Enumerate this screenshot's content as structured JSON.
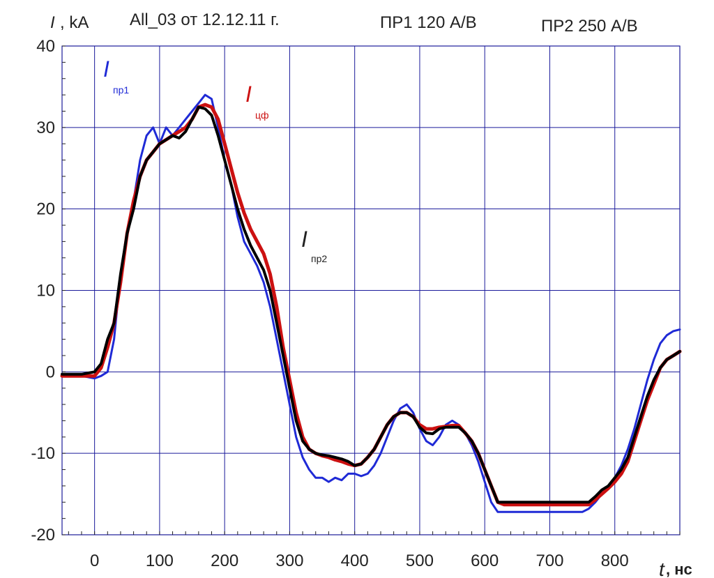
{
  "header": {
    "ylabel_symbol": "I",
    "ylabel_unit": ", kA",
    "title": "All_03 от 12.12.11 г.",
    "probe1": "ПР1 120 А/В",
    "probe2": "ПР2 250 А/В"
  },
  "colors": {
    "grid": "#1a1a9a",
    "series_pr1": "#1f2ad6",
    "series_cf": "#cc1111",
    "series_pr2": "#000000"
  },
  "chart_data": {
    "type": "line",
    "xlabel": "t",
    "xunit": ", нс",
    "ylabel": "I, kA",
    "xlim": [
      -50,
      900
    ],
    "ylim": [
      -20,
      40
    ],
    "xticks": [
      0,
      100,
      200,
      300,
      400,
      500,
      600,
      700,
      800
    ],
    "yticks": [
      -20,
      -10,
      0,
      10,
      20,
      30,
      40
    ],
    "grid": true,
    "series": [
      {
        "name": "I",
        "sub": "пр1",
        "color": "#1f2ad6",
        "x": [
          -50,
          -20,
          0,
          10,
          20,
          30,
          40,
          50,
          60,
          70,
          80,
          90,
          100,
          110,
          120,
          130,
          140,
          150,
          160,
          170,
          180,
          190,
          200,
          210,
          220,
          230,
          240,
          250,
          260,
          270,
          280,
          290,
          300,
          310,
          320,
          330,
          340,
          350,
          360,
          370,
          380,
          390,
          400,
          410,
          420,
          430,
          440,
          450,
          460,
          470,
          480,
          490,
          500,
          510,
          520,
          530,
          540,
          550,
          560,
          570,
          580,
          590,
          600,
          610,
          620,
          630,
          640,
          700,
          750,
          760,
          770,
          780,
          790,
          800,
          810,
          820,
          830,
          840,
          850,
          860,
          870,
          880,
          890,
          900
        ],
        "y": [
          -0.5,
          -0.5,
          -0.8,
          -0.5,
          0,
          4,
          12,
          17,
          21,
          26,
          29,
          30,
          28,
          30,
          29,
          30,
          31,
          32,
          33,
          34,
          33.5,
          30,
          26,
          23,
          19,
          16,
          14.5,
          13,
          11,
          8,
          4,
          0,
          -4,
          -8,
          -10.5,
          -12,
          -13,
          -13,
          -13.5,
          -13,
          -13.3,
          -12.5,
          -12.5,
          -12.8,
          -12.5,
          -11.5,
          -10,
          -8,
          -6,
          -4.5,
          -4,
          -5,
          -7,
          -8.5,
          -9,
          -8,
          -6.5,
          -6,
          -6.5,
          -7.5,
          -9,
          -11,
          -13.5,
          -16,
          -17.2,
          -17.2,
          -17.2,
          -17.2,
          -17.2,
          -16.8,
          -16,
          -15,
          -14,
          -13,
          -11.5,
          -9.5,
          -7,
          -4,
          -1,
          1.5,
          3.5,
          4.5,
          5,
          5.2
        ]
      },
      {
        "name": "I",
        "sub": "цф",
        "color": "#cc1111",
        "x": [
          -50,
          -20,
          0,
          10,
          20,
          30,
          40,
          50,
          60,
          70,
          80,
          90,
          100,
          110,
          120,
          130,
          140,
          150,
          160,
          170,
          180,
          190,
          200,
          210,
          220,
          230,
          240,
          250,
          260,
          270,
          280,
          290,
          300,
          310,
          320,
          330,
          340,
          350,
          360,
          370,
          380,
          390,
          400,
          410,
          420,
          430,
          440,
          450,
          460,
          470,
          480,
          490,
          500,
          510,
          520,
          530,
          540,
          550,
          560,
          570,
          580,
          590,
          600,
          610,
          620,
          630,
          640,
          700,
          750,
          760,
          770,
          780,
          790,
          800,
          810,
          820,
          830,
          840,
          850,
          860,
          870,
          880,
          890,
          900
        ],
        "y": [
          -0.5,
          -0.5,
          -0.5,
          0.5,
          3,
          6,
          11,
          17,
          21,
          24,
          26,
          27,
          28,
          28.5,
          29,
          29.5,
          30,
          31,
          32.5,
          32.8,
          32.5,
          31,
          28,
          25,
          22,
          19.5,
          17.5,
          16,
          14.5,
          12,
          8,
          3,
          -1,
          -5,
          -8,
          -9.5,
          -10,
          -10.3,
          -10.5,
          -10.8,
          -11,
          -11.3,
          -11.5,
          -11.3,
          -10.5,
          -9.5,
          -8,
          -6.5,
          -5.5,
          -5,
          -5,
          -5.5,
          -6.5,
          -7,
          -7,
          -6.8,
          -6.7,
          -6.6,
          -6.6,
          -7.5,
          -8.5,
          -10,
          -12,
          -14,
          -16,
          -16.3,
          -16.3,
          -16.3,
          -16.3,
          -16.3,
          -15.7,
          -15,
          -14.3,
          -13.5,
          -12.5,
          -11,
          -8.5,
          -6,
          -3.5,
          -1.5,
          0.5,
          1.5,
          2,
          2.5
        ]
      },
      {
        "name": "I",
        "sub": "пр2",
        "color": "#000000",
        "x": [
          -50,
          -20,
          0,
          10,
          20,
          30,
          40,
          50,
          60,
          70,
          80,
          90,
          100,
          110,
          120,
          130,
          140,
          150,
          160,
          170,
          180,
          190,
          200,
          210,
          220,
          230,
          240,
          250,
          260,
          270,
          280,
          290,
          300,
          310,
          320,
          330,
          340,
          350,
          360,
          370,
          380,
          390,
          400,
          410,
          420,
          430,
          440,
          450,
          460,
          470,
          480,
          490,
          500,
          510,
          520,
          530,
          540,
          550,
          560,
          570,
          580,
          590,
          600,
          610,
          620,
          630,
          640,
          700,
          750,
          760,
          770,
          780,
          790,
          800,
          810,
          820,
          830,
          840,
          850,
          860,
          870,
          880,
          890,
          900
        ],
        "y": [
          -0.3,
          -0.3,
          0,
          1,
          4,
          6,
          12,
          17,
          20,
          24,
          26,
          27,
          28,
          28.5,
          29,
          28.7,
          29.5,
          31,
          32.5,
          32.3,
          31.5,
          29,
          26,
          23,
          20,
          17.5,
          15.5,
          14,
          12.5,
          10,
          6,
          2,
          -2,
          -6,
          -8.5,
          -9.5,
          -10,
          -10.2,
          -10.3,
          -10.5,
          -10.7,
          -11,
          -11.5,
          -11.3,
          -10.5,
          -9.5,
          -8,
          -6.5,
          -5.5,
          -5,
          -5,
          -5.5,
          -6.8,
          -7.5,
          -7.6,
          -7,
          -6.8,
          -6.8,
          -6.8,
          -7.5,
          -8.5,
          -10,
          -12,
          -14,
          -16,
          -16,
          -16,
          -16,
          -16,
          -16,
          -15.3,
          -14.5,
          -14,
          -13,
          -12,
          -10.5,
          -8,
          -5.5,
          -3,
          -1,
          0.5,
          1.5,
          2,
          2.5
        ]
      }
    ]
  }
}
